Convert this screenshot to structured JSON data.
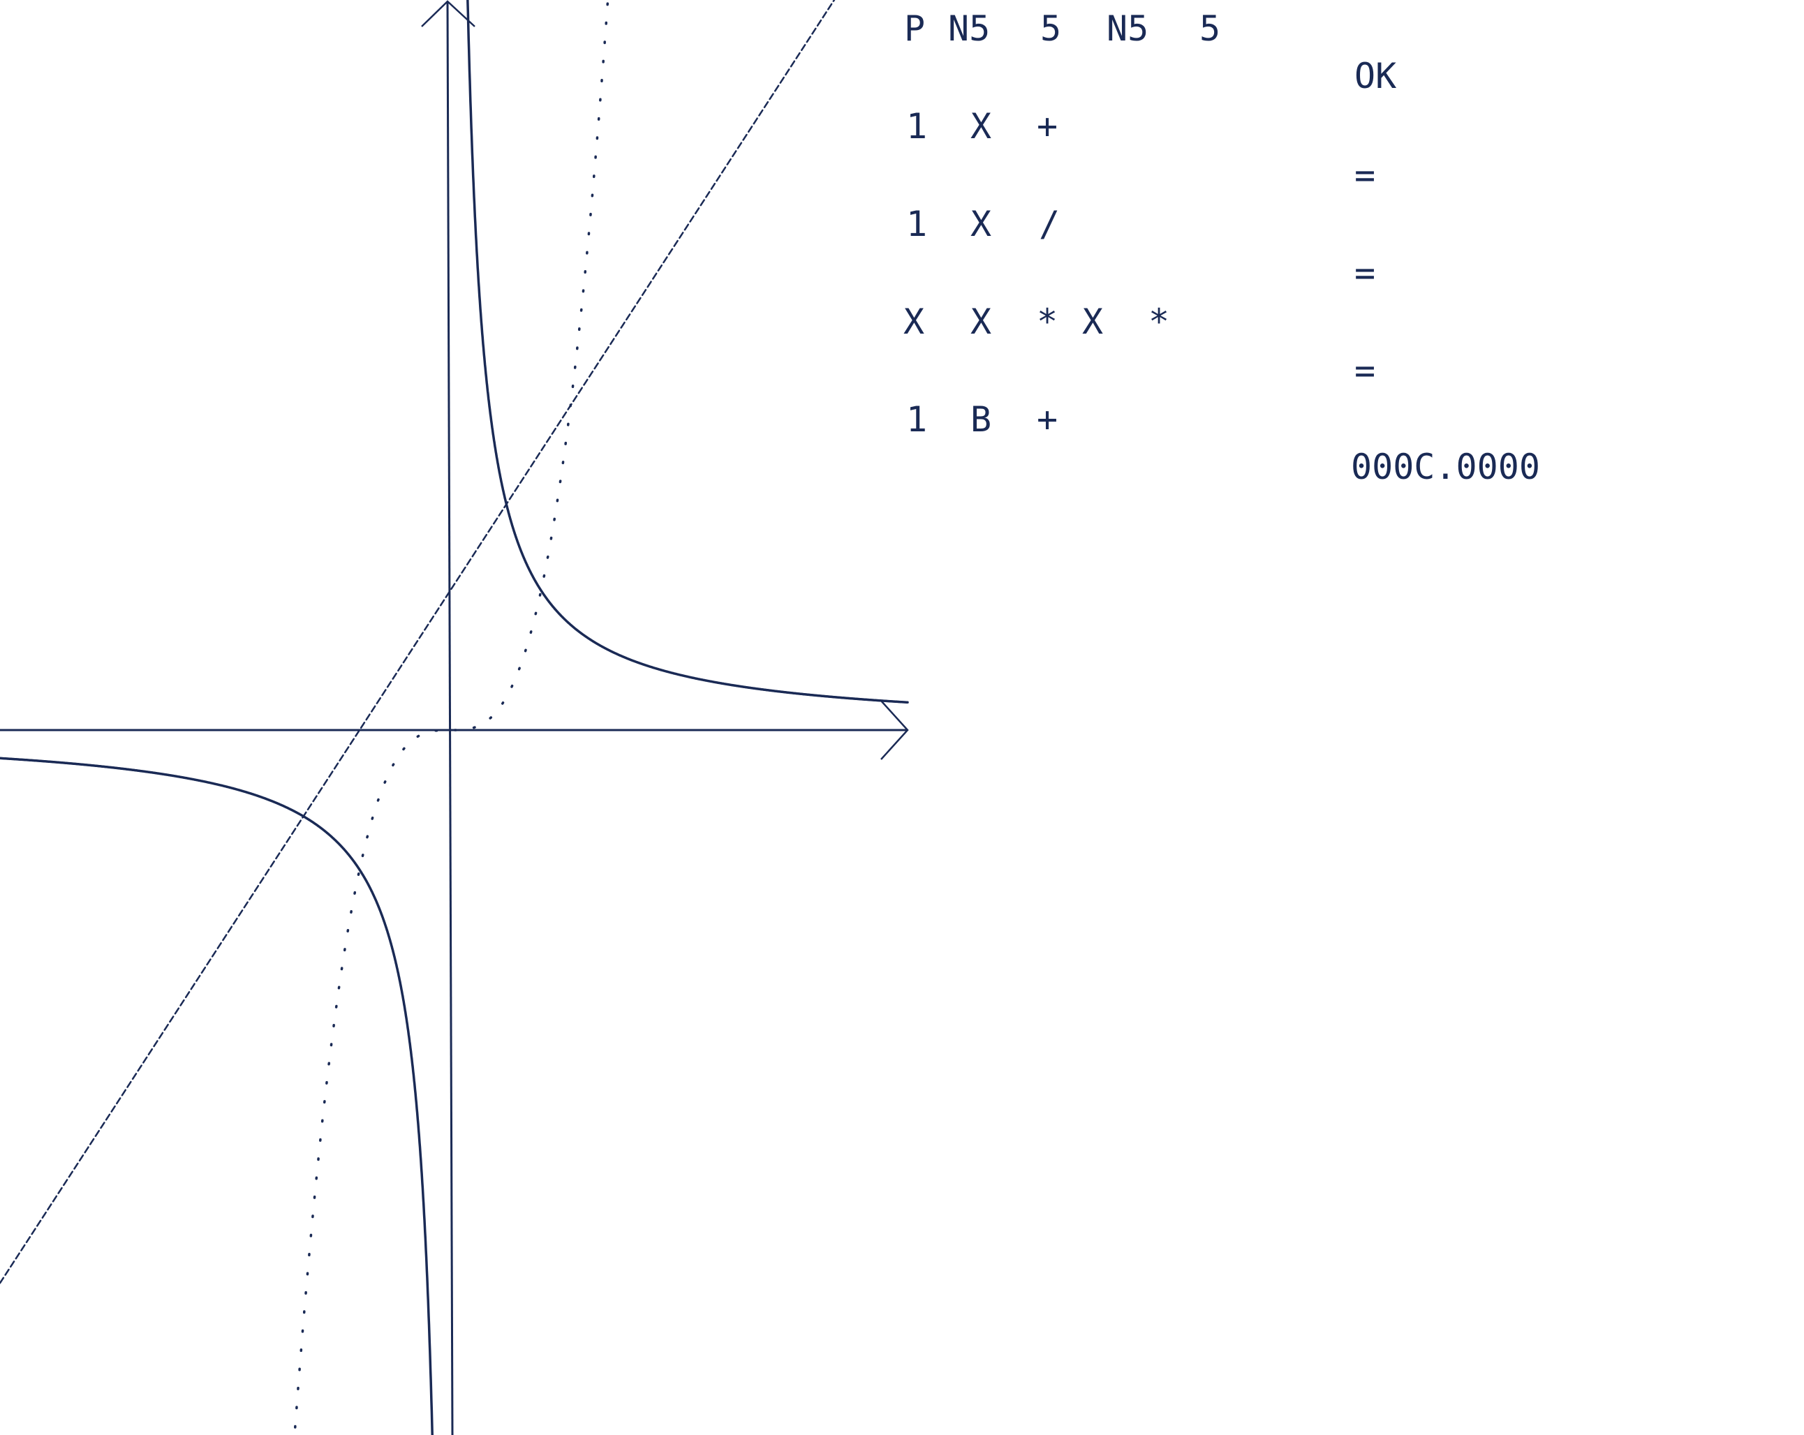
{
  "screen": {
    "background_color": "#ffffff",
    "ink_color": "#1a2a55"
  },
  "console": {
    "command_lines": [
      [
        "P",
        "N5",
        "5",
        "N5",
        "5"
      ],
      [
        "1",
        "X",
        "+"
      ],
      [
        "1",
        "X",
        "/"
      ],
      [
        "X",
        "X",
        "*",
        "X",
        "*"
      ],
      [
        "1",
        "B",
        "+"
      ]
    ],
    "responses": [
      "OK",
      "=",
      "=",
      "=",
      "000C.0000"
    ]
  },
  "chart_data": {
    "type": "line",
    "xlim": [
      -5,
      5
    ],
    "ylim": [
      -5,
      5
    ],
    "x_axis_visible_range": [
      -5,
      5
    ],
    "grid": false,
    "arrowheads": [
      "positive-x",
      "positive-y"
    ],
    "series": [
      {
        "expression": "1 X +",
        "formula": "y = x + 1",
        "style": "dashed",
        "x": [
          -5,
          -4,
          -3,
          -2,
          -1,
          0,
          1,
          2,
          3,
          4
        ],
        "y": [
          -4,
          -3,
          -2,
          -1,
          0,
          1,
          2,
          3,
          4,
          5
        ]
      },
      {
        "expression": "1 X /",
        "formula": "y = 1 / x",
        "style": "solid",
        "x": [
          -5,
          -4,
          -3,
          -2,
          -1,
          -0.5,
          0.2,
          0.5,
          1,
          2,
          3,
          4,
          5
        ],
        "y": [
          -0.2,
          -0.25,
          -0.333,
          -0.5,
          -1,
          -2,
          5,
          2,
          1,
          0.5,
          0.333,
          0.25,
          0.2
        ]
      },
      {
        "expression": "X X * X *",
        "formula": "y = x^3",
        "style": "dotted",
        "x": [
          -1.71,
          -1.5,
          -1,
          -0.5,
          0,
          0.5,
          1,
          1.5,
          1.71
        ],
        "y": [
          -5,
          -3.375,
          -1,
          -0.125,
          0,
          0.125,
          1,
          3.375,
          5
        ]
      }
    ]
  }
}
